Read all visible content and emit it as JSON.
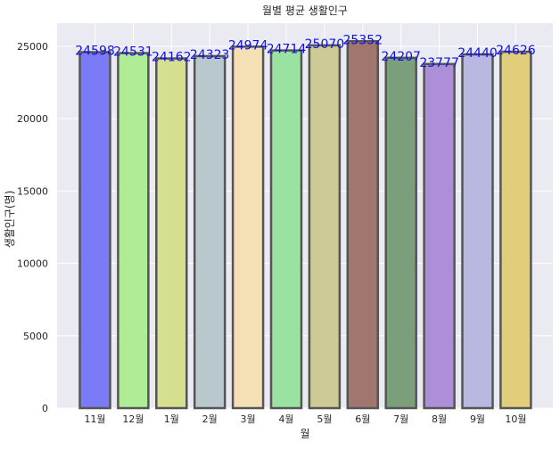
{
  "chart_data": {
    "type": "bar",
    "title": "월별 평균 생활인구",
    "xlabel": "월",
    "ylabel": "생활인구(명)",
    "categories": [
      "11월",
      "12월",
      "1월",
      "2월",
      "3월",
      "4월",
      "5월",
      "6월",
      "7월",
      "8월",
      "9월",
      "10월"
    ],
    "values": [
      24598,
      24531,
      24162,
      24323,
      24974,
      24714,
      25070,
      25352,
      24207,
      23777,
      24440,
      24626
    ],
    "data_labels": [
      "24598",
      "24531",
      "24162",
      "24323",
      "24974",
      "24714",
      "25070",
      "25352",
      "24207",
      "23777",
      "24440",
      "24626"
    ],
    "y_ticks": [
      0,
      5000,
      10000,
      15000,
      20000,
      25000
    ],
    "y_tick_labels": [
      "0",
      "5000",
      "10000",
      "15000",
      "20000",
      "25000"
    ],
    "ylim": [
      0,
      26600
    ],
    "grid": true,
    "bar_colors": [
      "#7b7bf8",
      "#aeec96",
      "#d5df8e",
      "#b9c8cc",
      "#f5dfb4",
      "#99e2a2",
      "#cccb95",
      "#a0766f",
      "#7b9e7b",
      "#ad8ed9",
      "#b8b8e0",
      "#e2cd7b"
    ],
    "bar_edge_color": "#555555",
    "data_label_color": "#1010e6",
    "background_color": "#eaeaf2",
    "grid_color": "#ffffff"
  }
}
